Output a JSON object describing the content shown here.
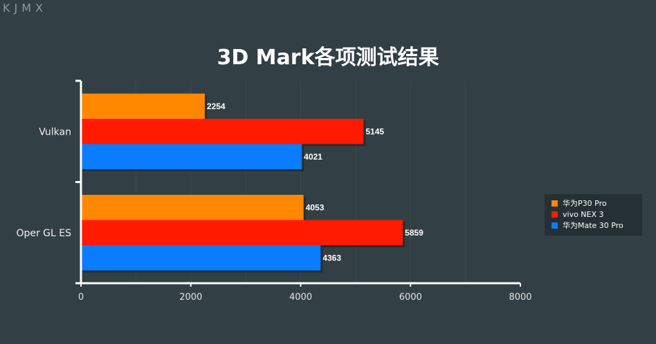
{
  "watermark": "KJMX",
  "chart_data": {
    "type": "bar",
    "orientation": "horizontal",
    "title": "3D Mark各项测试结果",
    "categories": [
      "Vulkan",
      "Oper GL ES"
    ],
    "series": [
      {
        "name": "华为P30 Pro",
        "color": "#ff8800",
        "values": [
          2254,
          4053
        ]
      },
      {
        "name": "vivo NEX 3",
        "color": "#ff1a00",
        "values": [
          5145,
          5859
        ]
      },
      {
        "name": "华为Mate 30 Pro",
        "color": "#0a7cff",
        "values": [
          4021,
          4363
        ]
      }
    ],
    "xlim": [
      0,
      8000
    ],
    "xticks": [
      0,
      2000,
      4000,
      6000,
      8000
    ],
    "grid": true,
    "legend": "right"
  }
}
